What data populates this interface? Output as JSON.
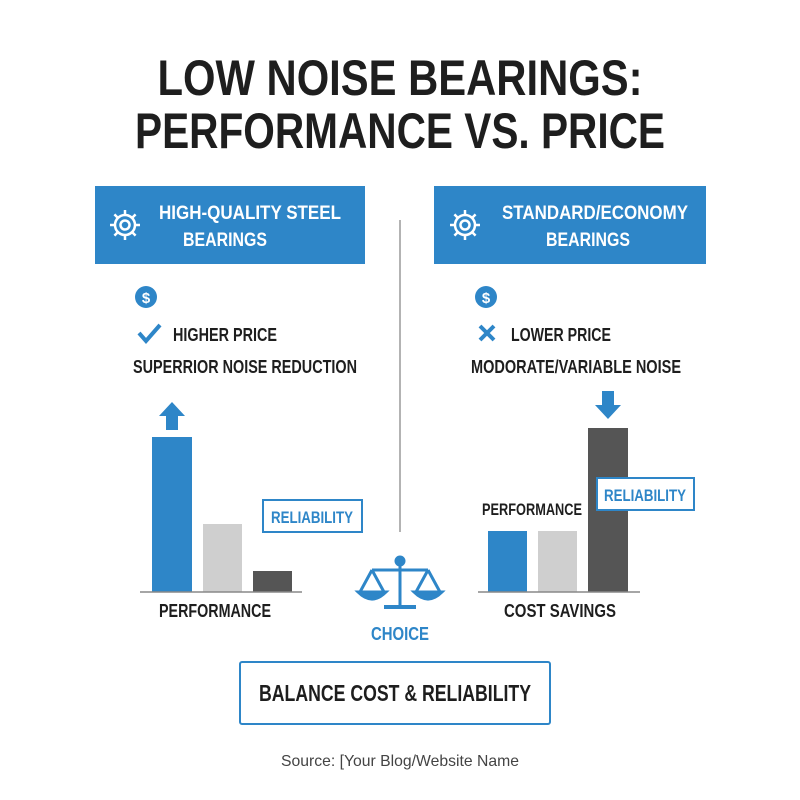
{
  "title": [
    "LOW NOISE BEARINGS:",
    "PERFORMANCE VS. PRICE"
  ],
  "left": {
    "header": [
      "HIGH-QUALITY STEEL",
      "BEARINGS"
    ],
    "icon": "$",
    "price": "HIGHER PRICE",
    "noise": "SUPERRIOR NOISE REDUCTION",
    "badge": "RELIABILITY",
    "axis_label": "PERFORMANCE"
  },
  "right": {
    "header": [
      "STANDARD/ECONOMY",
      "BEARINGS"
    ],
    "icon": "$",
    "price": "LOWER PRICE",
    "noise": "MODORATE/VARIABLE NOISE",
    "badge": "RELIABILITY",
    "bar_label": "PERFORMANCE",
    "axis_label": "COST SAVINGS"
  },
  "center": {
    "label": "CHOICE"
  },
  "footer_box": "BALANCE COST & RELIABILITY",
  "source": "Source: [Your Blog/Website Name"
}
